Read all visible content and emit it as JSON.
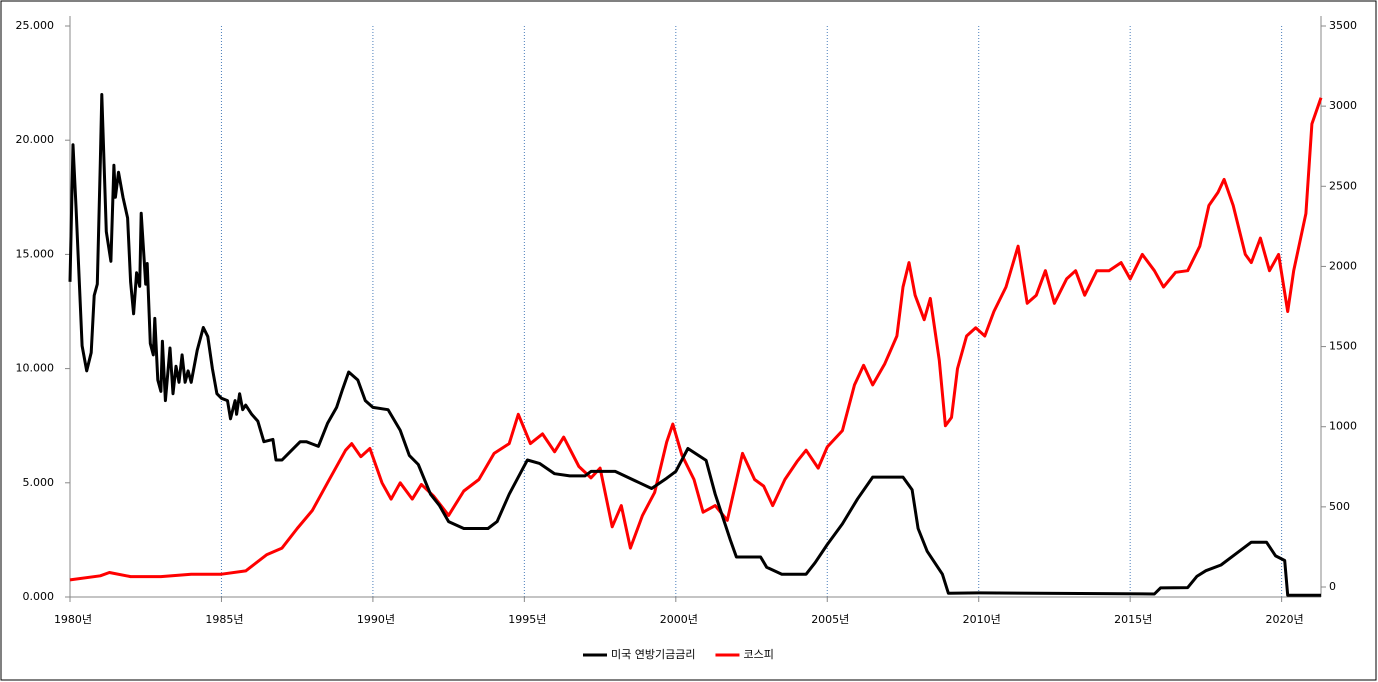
{
  "chart_data": {
    "type": "line",
    "xlim": [
      1980,
      2021.3
    ],
    "xticks": [
      {
        "value": 1980,
        "label": "1980년"
      },
      {
        "value": 1985,
        "label": "1985년"
      },
      {
        "value": 1990,
        "label": "1990년"
      },
      {
        "value": 1995,
        "label": "1995년"
      },
      {
        "value": 2000,
        "label": "2000년"
      },
      {
        "value": 2005,
        "label": "2005년"
      },
      {
        "value": 2010,
        "label": "2010년"
      },
      {
        "value": 2015,
        "label": "2015년"
      },
      {
        "value": 2020,
        "label": "2020년"
      }
    ],
    "ylim": [
      0,
      25
    ],
    "yticks": [
      {
        "value": 0,
        "label": "0.000"
      },
      {
        "value": 5,
        "label": "5.000"
      },
      {
        "value": 10,
        "label": "10.000"
      },
      {
        "value": 15,
        "label": "15.000"
      },
      {
        "value": 20,
        "label": "20.000"
      },
      {
        "value": 25,
        "label": "25.000"
      }
    ],
    "y2lim": [
      0,
      3500
    ],
    "y2ticks": [
      0,
      500,
      1000,
      1500,
      2000,
      2500,
      3000,
      3500
    ],
    "grid": "x",
    "legend": "bottom",
    "series": [
      {
        "name": "미국 연방기금금리",
        "color": "#000000",
        "axis": "y",
        "x": [
          1980.0,
          1980.1,
          1980.2,
          1980.4,
          1980.55,
          1980.7,
          1980.8,
          1980.9,
          1981.0,
          1981.05,
          1981.2,
          1981.35,
          1981.45,
          1981.5,
          1981.6,
          1981.75,
          1981.9,
          1982.0,
          1982.1,
          1982.2,
          1982.3,
          1982.35,
          1982.5,
          1982.55,
          1982.65,
          1982.75,
          1982.8,
          1982.9,
          1983.0,
          1983.05,
          1983.15,
          1983.3,
          1983.4,
          1983.5,
          1983.6,
          1983.7,
          1983.8,
          1983.9,
          1984.0,
          1984.2,
          1984.4,
          1984.55,
          1984.7,
          1984.85,
          1985.0,
          1985.2,
          1985.3,
          1985.45,
          1985.5,
          1985.6,
          1985.7,
          1985.8,
          1986.0,
          1986.2,
          1986.4,
          1986.7,
          1986.8,
          1987.0,
          1987.3,
          1987.6,
          1987.8,
          1988.0,
          1988.2,
          1988.5,
          1988.8,
          1989.0,
          1989.2,
          1989.5,
          1989.75,
          1990.0,
          1990.5,
          1990.9,
          1991.2,
          1991.5,
          1991.9,
          1992.2,
          1992.5,
          1993.0,
          1993.8,
          1994.1,
          1994.5,
          1994.9,
          1995.1,
          1995.5,
          1996.0,
          1996.5,
          1997.0,
          1997.2,
          1998.0,
          1998.8,
          1999.2,
          1999.7,
          2000.0,
          2000.4,
          2001.0,
          2001.3,
          2001.8,
          2002.0,
          2002.8,
          2003.0,
          2003.5,
          2004.3,
          2004.6,
          2005.0,
          2005.5,
          2006.0,
          2006.5,
          2007.5,
          2007.8,
          2008.0,
          2008.3,
          2008.8,
          2009.0,
          2010.0,
          2015.8,
          2016.0,
          2016.9,
          2017.2,
          2017.5,
          2018.0,
          2018.5,
          2019.0,
          2019.5,
          2019.8,
          2020.1,
          2020.2,
          2021.3
        ],
        "values": [
          13.8,
          19.8,
          17,
          11,
          9.9,
          10.7,
          13.2,
          13.7,
          19,
          22,
          16,
          14.7,
          18.9,
          17.5,
          18.6,
          17.5,
          16.6,
          13.8,
          12.4,
          14.2,
          13.6,
          16.8,
          13.7,
          14.6,
          11.1,
          10.6,
          12.2,
          9.5,
          9.0,
          11.2,
          8.6,
          10.9,
          8.9,
          10.1,
          9.4,
          10.6,
          9.4,
          9.9,
          9.4,
          10.8,
          11.8,
          11.4,
          10,
          8.9,
          8.7,
          8.6,
          7.8,
          8.6,
          8.0,
          8.9,
          8.2,
          8.4,
          8.0,
          7.7,
          6.8,
          6.9,
          6.0,
          6.0,
          6.4,
          6.8,
          6.8,
          6.7,
          6.6,
          7.6,
          8.3,
          9.1,
          9.85,
          9.5,
          8.6,
          8.3,
          8.2,
          7.3,
          6.2,
          5.8,
          4.5,
          4.0,
          3.3,
          3.0,
          3.0,
          3.3,
          4.5,
          5.5,
          6.0,
          5.85,
          5.4,
          5.3,
          5.3,
          5.5,
          5.5,
          5.0,
          4.75,
          5.2,
          5.5,
          6.5,
          5.98,
          4.5,
          2.5,
          1.75,
          1.75,
          1.3,
          1.0,
          1.0,
          1.5,
          2.3,
          3.2,
          4.3,
          5.25,
          5.25,
          4.7,
          3.0,
          2.0,
          1.0,
          0.16,
          0.18,
          0.13,
          0.4,
          0.41,
          0.9,
          1.15,
          1.4,
          1.9,
          2.4,
          2.4,
          1.8,
          1.6,
          0.08,
          0.08
        ]
      },
      {
        "name": "코스피",
        "color": "#ff0000",
        "axis": "y2",
        "x": [
          1980.0,
          1981.0,
          1981.3,
          1982.0,
          1983.0,
          1984.0,
          1985.0,
          1985.8,
          1986.5,
          1987.0,
          1987.5,
          1988.0,
          1988.5,
          1989.1,
          1989.3,
          1989.6,
          1989.9,
          1990.3,
          1990.6,
          1990.9,
          1991.3,
          1991.6,
          1992.0,
          1992.5,
          1993.0,
          1993.5,
          1994.0,
          1994.5,
          1994.8,
          1995.2,
          1995.6,
          1996.0,
          1996.3,
          1996.8,
          1997.2,
          1997.5,
          1997.9,
          1998.2,
          1998.5,
          1998.9,
          1999.3,
          1999.7,
          1999.9,
          2000.2,
          2000.6,
          2000.9,
          2001.3,
          2001.7,
          2002.2,
          2002.6,
          2002.9,
          2003.2,
          2003.6,
          2004.0,
          2004.3,
          2004.7,
          2005.0,
          2005.5,
          2005.9,
          2006.2,
          2006.5,
          2006.9,
          2007.3,
          2007.5,
          2007.7,
          2007.9,
          2008.2,
          2008.4,
          2008.7,
          2008.9,
          2009.1,
          2009.3,
          2009.6,
          2009.9,
          2010.2,
          2010.5,
          2010.9,
          2011.3,
          2011.6,
          2011.9,
          2012.2,
          2012.5,
          2012.9,
          2013.2,
          2013.5,
          2013.9,
          2014.3,
          2014.7,
          2015.0,
          2015.4,
          2015.8,
          2016.1,
          2016.5,
          2016.9,
          2017.3,
          2017.6,
          2017.9,
          2018.1,
          2018.4,
          2018.8,
          2019.0,
          2019.3,
          2019.6,
          2019.9,
          2020.2,
          2020.4,
          2020.8,
          2021.0,
          2021.3
        ],
        "values": [
          105,
          130,
          150,
          125,
          125,
          140,
          140,
          160,
          260,
          300,
          420,
          530,
          700,
          900,
          940,
          860,
          910,
          700,
          600,
          700,
          600,
          690,
          620,
          500,
          650,
          720,
          880,
          940,
          1120,
          940,
          1000,
          890,
          980,
          800,
          730,
          790,
          430,
          560,
          300,
          500,
          640,
          950,
          1060,
          870,
          720,
          520,
          560,
          470,
          880,
          720,
          680,
          560,
          720,
          830,
          900,
          790,
          920,
          1020,
          1300,
          1420,
          1300,
          1430,
          1600,
          1900,
          2050,
          1850,
          1700,
          1830,
          1450,
          1050,
          1100,
          1400,
          1600,
          1650,
          1600,
          1750,
          1900,
          2150,
          1800,
          1850,
          2000,
          1800,
          1950,
          2000,
          1850,
          2000,
          2000,
          2050,
          1950,
          2100,
          2000,
          1900,
          1990,
          2000,
          2150,
          2400,
          2480,
          2560,
          2400,
          2100,
          2050,
          2200,
          2000,
          2100,
          1750,
          2000,
          2350,
          2900,
          3060
        ]
      }
    ]
  }
}
